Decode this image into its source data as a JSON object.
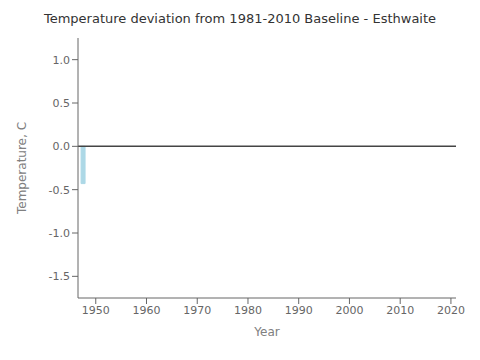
{
  "chart_data": {
    "type": "bar",
    "title": "Temperature deviation from 1981-2010 Baseline - Esthwaite",
    "x_label": "Year",
    "y_label": "Temperature, C",
    "x": [
      1947.5
    ],
    "values": [
      -0.43
    ],
    "color": "#add8e6",
    "xlim": [
      1946.5,
      2021
    ],
    "xticks": [
      1950,
      1960,
      1970,
      1980,
      1990,
      2000,
      2010,
      2020
    ],
    "ylim": [
      -1.75,
      1.25
    ],
    "yticks": [
      -1.5,
      {
        "value": -1.0,
        "label": "-1.0"
      },
      -0.5,
      {
        "value": 0.0,
        "label": "0.0"
      },
      0.5,
      {
        "value": 1.0,
        "label": "1.0"
      }
    ],
    "hline": {
      "y": 0.0,
      "color": "#444444"
    }
  }
}
